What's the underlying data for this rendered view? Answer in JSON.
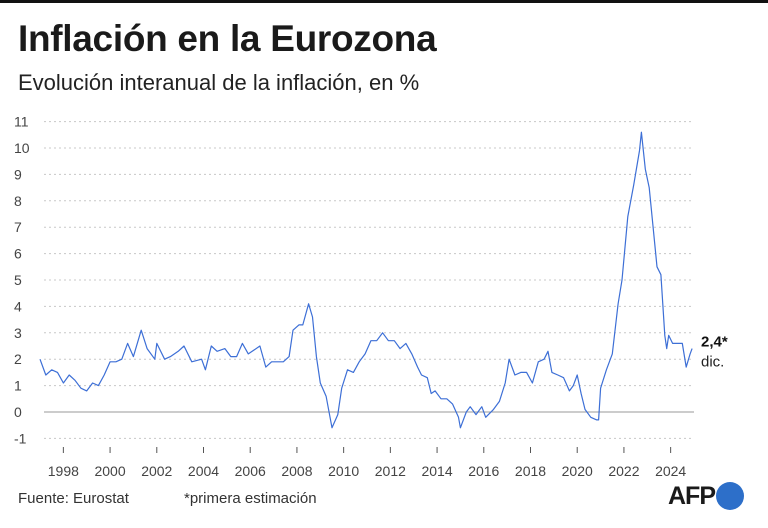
{
  "title": "Inflación en la Eurozona",
  "subtitle": "Evolución interanual de la inflación, en %",
  "footer": {
    "source": "Fuente: Eurostat",
    "note": "*primera estimación"
  },
  "logo": "AFP",
  "colors": {
    "line": "#3d6fd6",
    "grid": "#c8c8c8",
    "zero": "#999999",
    "logo_dot": "#2d6fc9"
  },
  "chart_data": {
    "type": "line",
    "title": "Inflación en la Eurozona",
    "ylabel": "",
    "xlabel": "",
    "ylim": [
      -1,
      11
    ],
    "yticks": [
      "-1",
      "0",
      "1",
      "2",
      "3",
      "4",
      "5",
      "6",
      "7",
      "8",
      "9",
      "10",
      "11"
    ],
    "xticks": [
      "1998",
      "2000",
      "2002",
      "2004",
      "2006",
      "2008",
      "2010",
      "2012",
      "2014",
      "2016",
      "2018",
      "2020",
      "2022",
      "2024"
    ],
    "grid": "horizontal dashed",
    "last_value_label": "2,4*",
    "last_date_label": "dic.",
    "series": [
      {
        "points": [
          [
            "1997-01",
            2.0
          ],
          [
            "1997-04",
            1.4
          ],
          [
            "1997-07",
            1.6
          ],
          [
            "1997-10",
            1.5
          ],
          [
            "1998-01",
            1.1
          ],
          [
            "1998-04",
            1.4
          ],
          [
            "1998-07",
            1.2
          ],
          [
            "1998-10",
            0.9
          ],
          [
            "1999-01",
            0.8
          ],
          [
            "1999-04",
            1.1
          ],
          [
            "1999-07",
            1.0
          ],
          [
            "1999-10",
            1.4
          ],
          [
            "2000-01",
            1.9
          ],
          [
            "2000-04",
            1.9
          ],
          [
            "2000-07",
            2.0
          ],
          [
            "2000-10",
            2.6
          ],
          [
            "2001-01",
            2.1
          ],
          [
            "2001-05",
            3.1
          ],
          [
            "2001-08",
            2.4
          ],
          [
            "2001-12",
            2.0
          ],
          [
            "2002-01",
            2.6
          ],
          [
            "2002-05",
            2.0
          ],
          [
            "2002-08",
            2.1
          ],
          [
            "2002-12",
            2.3
          ],
          [
            "2003-03",
            2.5
          ],
          [
            "2003-07",
            1.9
          ],
          [
            "2003-12",
            2.0
          ],
          [
            "2004-02",
            1.6
          ],
          [
            "2004-05",
            2.5
          ],
          [
            "2004-08",
            2.3
          ],
          [
            "2004-12",
            2.4
          ],
          [
            "2005-03",
            2.1
          ],
          [
            "2005-06",
            2.1
          ],
          [
            "2005-09",
            2.6
          ],
          [
            "2005-12",
            2.2
          ],
          [
            "2006-02",
            2.3
          ],
          [
            "2006-06",
            2.5
          ],
          [
            "2006-09",
            1.7
          ],
          [
            "2006-12",
            1.9
          ],
          [
            "2007-03",
            1.9
          ],
          [
            "2007-06",
            1.9
          ],
          [
            "2007-09",
            2.1
          ],
          [
            "2007-11",
            3.1
          ],
          [
            "2008-02",
            3.3
          ],
          [
            "2008-04",
            3.3
          ],
          [
            "2008-07",
            4.1
          ],
          [
            "2008-09",
            3.6
          ],
          [
            "2008-11",
            2.1
          ],
          [
            "2009-01",
            1.1
          ],
          [
            "2009-04",
            0.6
          ],
          [
            "2009-07",
            -0.6
          ],
          [
            "2009-10",
            -0.1
          ],
          [
            "2009-12",
            0.9
          ],
          [
            "2010-03",
            1.6
          ],
          [
            "2010-06",
            1.5
          ],
          [
            "2010-09",
            1.9
          ],
          [
            "2010-12",
            2.2
          ],
          [
            "2011-03",
            2.7
          ],
          [
            "2011-06",
            2.7
          ],
          [
            "2011-09",
            3.0
          ],
          [
            "2011-12",
            2.7
          ],
          [
            "2012-03",
            2.7
          ],
          [
            "2012-06",
            2.4
          ],
          [
            "2012-09",
            2.6
          ],
          [
            "2012-12",
            2.2
          ],
          [
            "2013-03",
            1.7
          ],
          [
            "2013-05",
            1.4
          ],
          [
            "2013-08",
            1.3
          ],
          [
            "2013-10",
            0.7
          ],
          [
            "2013-12",
            0.8
          ],
          [
            "2014-03",
            0.5
          ],
          [
            "2014-06",
            0.5
          ],
          [
            "2014-09",
            0.3
          ],
          [
            "2014-12",
            -0.2
          ],
          [
            "2015-01",
            -0.6
          ],
          [
            "2015-04",
            0.0
          ],
          [
            "2015-06",
            0.2
          ],
          [
            "2015-09",
            -0.1
          ],
          [
            "2015-12",
            0.2
          ],
          [
            "2016-02",
            -0.2
          ],
          [
            "2016-06",
            0.1
          ],
          [
            "2016-09",
            0.4
          ],
          [
            "2016-12",
            1.1
          ],
          [
            "2017-02",
            2.0
          ],
          [
            "2017-05",
            1.4
          ],
          [
            "2017-08",
            1.5
          ],
          [
            "2017-11",
            1.5
          ],
          [
            "2018-02",
            1.1
          ],
          [
            "2018-05",
            1.9
          ],
          [
            "2018-08",
            2.0
          ],
          [
            "2018-10",
            2.3
          ],
          [
            "2018-12",
            1.5
          ],
          [
            "2019-03",
            1.4
          ],
          [
            "2019-06",
            1.3
          ],
          [
            "2019-09",
            0.8
          ],
          [
            "2019-11",
            1.0
          ],
          [
            "2020-01",
            1.4
          ],
          [
            "2020-03",
            0.7
          ],
          [
            "2020-05",
            0.1
          ],
          [
            "2020-08",
            -0.2
          ],
          [
            "2020-11",
            -0.3
          ],
          [
            "2020-12",
            -0.3
          ],
          [
            "2021-01",
            0.9
          ],
          [
            "2021-04",
            1.6
          ],
          [
            "2021-07",
            2.2
          ],
          [
            "2021-10",
            4.1
          ],
          [
            "2021-12",
            5.0
          ],
          [
            "2022-03",
            7.4
          ],
          [
            "2022-06",
            8.6
          ],
          [
            "2022-09",
            9.9
          ],
          [
            "2022-10",
            10.6
          ],
          [
            "2022-12",
            9.2
          ],
          [
            "2023-02",
            8.5
          ],
          [
            "2023-04",
            7.0
          ],
          [
            "2023-06",
            5.5
          ],
          [
            "2023-08",
            5.2
          ],
          [
            "2023-10",
            2.9
          ],
          [
            "2023-11",
            2.4
          ],
          [
            "2023-12",
            2.9
          ],
          [
            "2024-02",
            2.6
          ],
          [
            "2024-05",
            2.6
          ],
          [
            "2024-07",
            2.6
          ],
          [
            "2024-09",
            1.7
          ],
          [
            "2024-11",
            2.2
          ],
          [
            "2024-12",
            2.4
          ]
        ]
      }
    ]
  }
}
